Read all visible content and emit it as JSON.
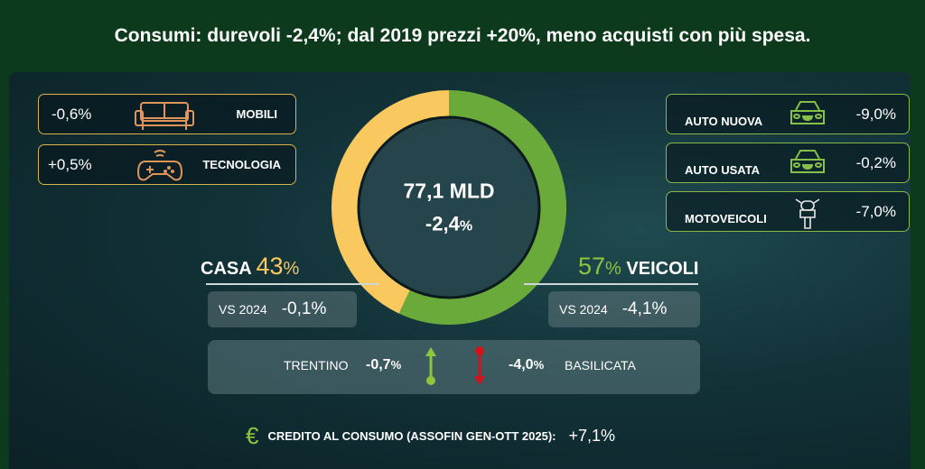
{
  "title": "Consumi: durevoli -2,4%; dal 2019 prezzi +20%, meno acquisti con più spesa.",
  "colors": {
    "casa": "#f9c85e",
    "veicoli": "#6aaa3a",
    "up": "#8cc63f",
    "down": "#d0141b"
  },
  "left_items": [
    {
      "value": "-0,6%",
      "label": "MOBILI",
      "icon": "sofa-icon"
    },
    {
      "value": "+0,5%",
      "label": "TECNOLOGIA",
      "icon": "gamepad-icon"
    }
  ],
  "right_items": [
    {
      "label": "AUTO NUOVA",
      "value": "-9,0%",
      "icon": "car-icon"
    },
    {
      "label": "AUTO USATA",
      "value": "-0,2%",
      "icon": "car-icon"
    },
    {
      "label": "MOTOVEICOLI",
      "value": "-7,0%",
      "icon": "motorbike-icon"
    }
  ],
  "center": {
    "total": "77,1 MLD",
    "change": "-2,4",
    "change_unit": "%"
  },
  "casa": {
    "label": "CASA",
    "share": "43",
    "unit": "%",
    "vs_label": "VS 2024",
    "vs_value": "-0,1%"
  },
  "veicoli": {
    "label": "VEICOLI",
    "share": "57",
    "unit": "%",
    "vs_label": "VS 2024",
    "vs_value": "-4,1%"
  },
  "regions": {
    "best_name": "TRENTINO",
    "best_value": "-0,7",
    "worst_value": "-4,0",
    "unit": "%",
    "worst_name": "BASILICATA"
  },
  "credit": {
    "icon": "euro-icon",
    "label": "CREDITO AL CONSUMO (ASSOFIN GEN-OTT 2025):",
    "value": "+7,1%"
  },
  "chart_data": {
    "type": "pie",
    "categories": [
      "CASA",
      "VEICOLI"
    ],
    "values": [
      43,
      57
    ],
    "colors": [
      "#f9c85e",
      "#6aaa3a"
    ],
    "donut": true,
    "center_label": "77,1 MLD -2,4%"
  }
}
